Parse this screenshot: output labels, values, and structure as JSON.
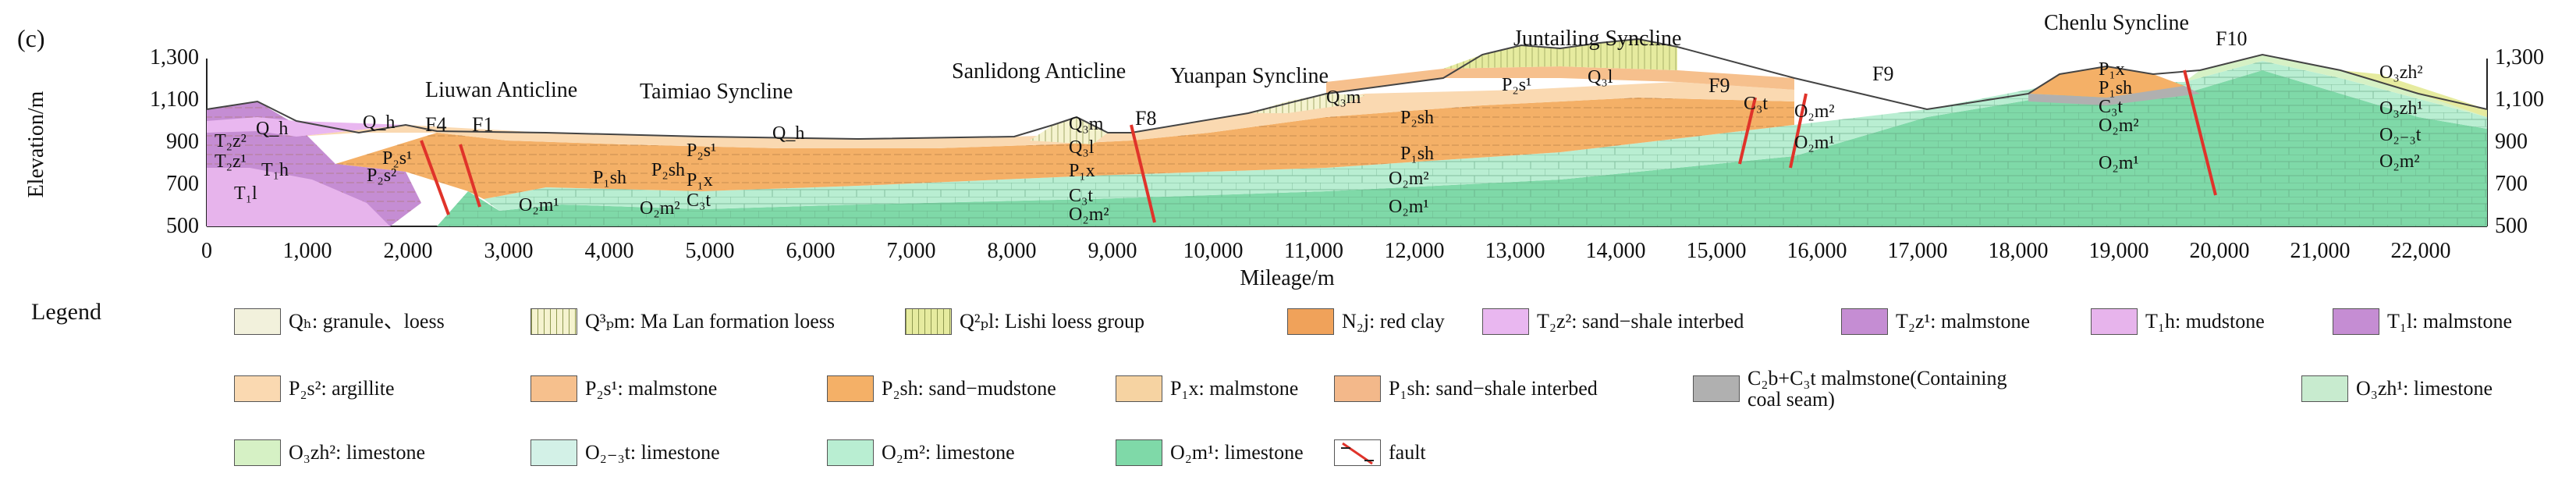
{
  "panel_label": "(c)",
  "section": {
    "y_axis_label": "Elevation/m",
    "x_axis_label": "Mileage/m",
    "y_ticks": [
      "500",
      "700",
      "900",
      "1,100",
      "1,300"
    ],
    "x_ticks": [
      "0",
      "1,000",
      "2,000",
      "3,000",
      "4,000",
      "5,000",
      "6,000",
      "7,000",
      "8,000",
      "9,000",
      "10,000",
      "11,000",
      "12,000",
      "13,000",
      "14,000",
      "15,000",
      "16,000",
      "17,000",
      "18,000",
      "19,000",
      "20,000",
      "21,000",
      "22,000"
    ],
    "structures": [
      "Liuwan  Anticline",
      "Taimiao  Syncline",
      "Sanlidong  Anticline",
      "Yuanpan  Syncline",
      "Juntailing  Syncline",
      "Chenlu Syncline"
    ],
    "faults": [
      "F4",
      "F1",
      "F8",
      "F9",
      "F9",
      "F10"
    ],
    "unit_labels": [
      "T₂z²",
      "Q_h",
      "Q_h",
      "T₂z¹",
      "T₁h",
      "T₁l",
      "P₂s²",
      "P₂s¹",
      "P₁sh",
      "P₂sh",
      "P₂s¹",
      "P₁x",
      "O₂m¹",
      "O₂m²",
      "C₃t",
      "Q_h",
      "Q₃m",
      "Q₃l",
      "P₁x",
      "C₃t",
      "O₂m²",
      "Q₃m",
      "P₂s¹",
      "Q₃l",
      "P₂sh",
      "P₁sh",
      "O₂m²",
      "O₂m¹",
      "C₃t",
      "O₂m²",
      "O₂m¹",
      "P₁x",
      "P₁sh",
      "C₃t",
      "O₂m²",
      "O₂m¹",
      "O₃zh²",
      "O₃zh¹",
      "O₂₋₃t",
      "O₂m²"
    ],
    "colors": {
      "purple": "#c99bd0",
      "purple_dark": "#b77fc0",
      "orange_light": "#f7d7a7",
      "orange": "#f2b46f",
      "green": "#b7e6c8",
      "green_dark": "#6fd2a3",
      "loess": "#e2e9a4",
      "grey": "#b9b9b9",
      "fault": "#e0332a"
    }
  },
  "legend": {
    "title": "Legend",
    "items": [
      {
        "label": "Qₕ: granule、loess",
        "color": "#f2f1dc",
        "pattern": "dots"
      },
      {
        "label": "Q³ₚm: Ma Lan formation loess",
        "color": "#f5f3cf",
        "pattern": "vlines"
      },
      {
        "label": "Q²ₚl: Lishi loess group",
        "color": "#e6eb9f",
        "pattern": "vlines"
      },
      {
        "label": "N₂j: red clay",
        "color": "#f0a25a",
        "pattern": "none"
      },
      {
        "label": "T₂z²: sand−shale interbed",
        "color": "#e9b7f0",
        "pattern": "dots"
      },
      {
        "label": "T₂z¹: malmstone",
        "color": "#c58dd3",
        "pattern": "dash"
      },
      {
        "label": "T₁h: mudstone",
        "color": "#e7b4ec",
        "pattern": "dash"
      },
      {
        "label": "T₁l: malmstone",
        "color": "#c58dd3",
        "pattern": "dash"
      },
      {
        "label": "P₂s²: argillite",
        "color": "#fad9b1",
        "pattern": "dash"
      },
      {
        "label": "P₂s¹: malmstone",
        "color": "#f6c08d",
        "pattern": "dash"
      },
      {
        "label": "P₂sh: sand−mudstone",
        "color": "#f4b067",
        "pattern": "dash"
      },
      {
        "label": "P₁x: malmstone",
        "color": "#f6d3a2",
        "pattern": "dash"
      },
      {
        "label": "P₁sh: sand−shale interbed",
        "color": "#f3b88a",
        "pattern": "dots"
      },
      {
        "label": "C₂b+C₃t malmstone(Containing coal seam)",
        "color": "#b0b0b0",
        "pattern": "none"
      },
      {
        "label": "O₃zh¹: limestone",
        "color": "#c8ebcf",
        "pattern": "brick"
      },
      {
        "label": "O₃zh²: limestone",
        "color": "#d6f1c5",
        "pattern": "brick"
      },
      {
        "label": "O₂₋₃t: limestone",
        "color": "#d3f1e7",
        "pattern": "brick"
      },
      {
        "label": "O₂m²: limestone",
        "color": "#b9eed2",
        "pattern": "brick"
      },
      {
        "label": "O₂m¹: limestone",
        "color": "#7fd9a8",
        "pattern": "brick"
      },
      {
        "label": "fault",
        "color": "#ffffff",
        "pattern": "fault"
      }
    ]
  }
}
